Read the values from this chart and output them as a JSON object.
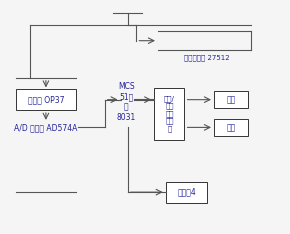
{
  "bg_color": "#f0f0f0",
  "line_color": "#555555",
  "text_color": "#222299",
  "box_edge": "#333333",
  "font_size": 5.5,
  "amp_label": "放大器 OP37",
  "adc_label": "A/D 转换器 AD574A",
  "mcu_label": "MCS\n51系\n列\n8031",
  "kbd_if_label": "键盘/\n显示\n器接\n口芯\n片",
  "kbd_label": "键盘",
  "disp_label": "显示",
  "relay_label": "继电器4",
  "rom_label": "程序存储器 27512"
}
